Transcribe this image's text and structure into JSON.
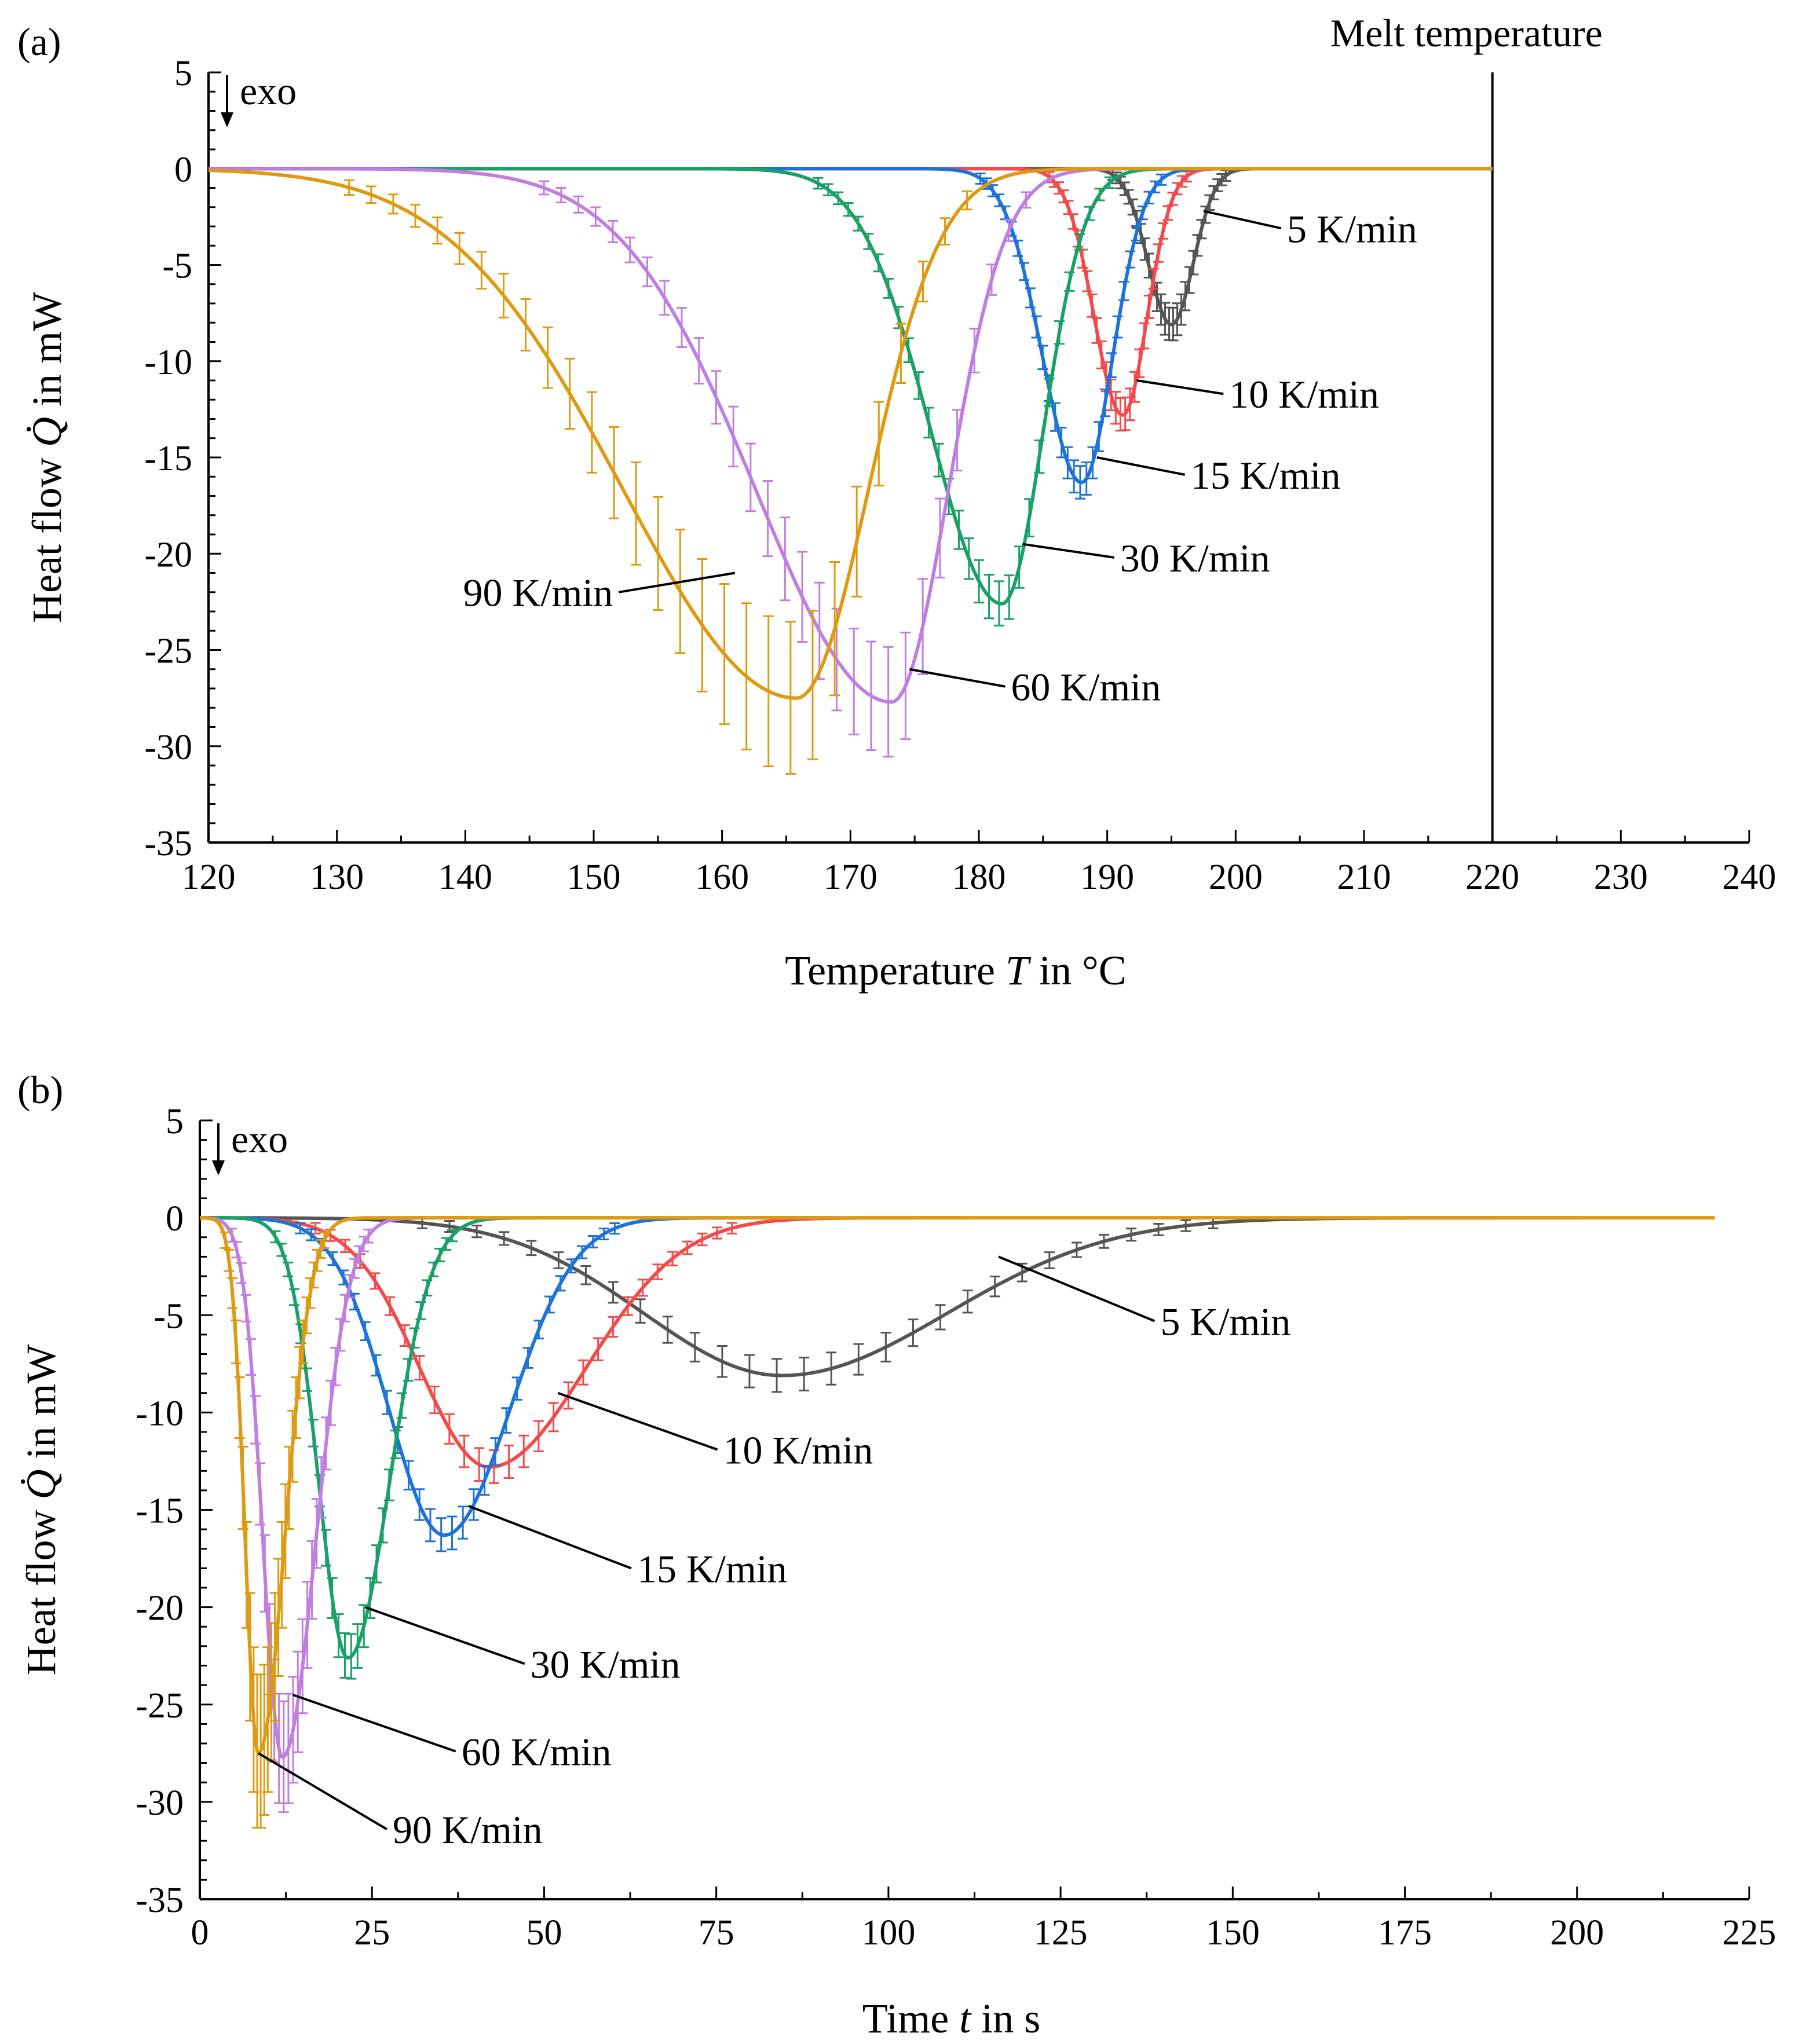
{
  "figure": {
    "background": "#ffffff"
  },
  "chart_data": [
    {
      "panel": "(a)",
      "type": "line",
      "xlabel": "Temperature T in °C",
      "xlabel_prefix": "Temperature ",
      "xlabel_var": "T",
      "xlabel_suffix": " in °C",
      "ylabel": "Heat flow Q̇ in mW",
      "ylabel_prefix": "Heat flow ",
      "ylabel_var": "Q̇",
      "ylabel_suffix": " in mW",
      "xlim": [
        120,
        240
      ],
      "ylim": [
        -35,
        5
      ],
      "xticks": [
        120,
        130,
        140,
        150,
        160,
        170,
        180,
        190,
        200,
        210,
        220,
        230,
        240
      ],
      "yticks": [
        5,
        0,
        -5,
        -10,
        -15,
        -20,
        -25,
        -30,
        -35
      ],
      "exo_label": "exo",
      "vline": {
        "x": 220,
        "label": "Melt temperature"
      },
      "series": [
        {
          "name": "5 K/min",
          "color": "#555555",
          "peak_x": 195.0,
          "peak_y": -8.1,
          "width_left": 1.8,
          "width_right": 1.7,
          "start": 120,
          "end": 220,
          "err": 0.6,
          "label_anchor_x": 197.5,
          "label_anchor_y": -2.2,
          "label_x": 204,
          "label_y": -3.7
        },
        {
          "name": "10 K/min",
          "color": "#f14b4b",
          "peak_x": 191.2,
          "peak_y": -12.8,
          "width_left": 2.2,
          "width_right": 1.9,
          "start": 120,
          "end": 220,
          "err": 0.6,
          "label_anchor_x": 192.3,
          "label_anchor_y": -11.0,
          "label_x": 199.5,
          "label_y": -12.3
        },
        {
          "name": "15 K/min",
          "color": "#1e73d6",
          "peak_x": 188.0,
          "peak_y": -16.3,
          "width_left": 3.0,
          "width_right": 2.4,
          "start": 120,
          "end": 220,
          "err": 0.6,
          "label_anchor_x": 189.2,
          "label_anchor_y": -15.0,
          "label_x": 196.5,
          "label_y": -16.5
        },
        {
          "name": "30 K/min",
          "color": "#1ba067",
          "peak_x": 181.8,
          "peak_y": -22.6,
          "width_left": 5.5,
          "width_right": 3.2,
          "start": 120,
          "end": 220,
          "err": 0.9,
          "label_anchor_x": 183.4,
          "label_anchor_y": -19.5,
          "label_x": 191,
          "label_y": -20.8
        },
        {
          "name": "60 K/min",
          "color": "#c07ee0",
          "peak_x": 173.2,
          "peak_y": -27.7,
          "width_left": 10.5,
          "width_right": 4.4,
          "start": 120,
          "end": 220,
          "err": 2.6,
          "label_anchor_x": 174.6,
          "label_anchor_y": -26.0,
          "label_x": 182.5,
          "label_y": -27.5
        },
        {
          "name": "90 K/min",
          "color": "#dd9a12",
          "peak_x": 165.8,
          "peak_y": -27.5,
          "width_left": 13.5,
          "width_right": 5.6,
          "start": 120,
          "end": 220,
          "err": 3.7,
          "label_anchor_x": 161.0,
          "label_anchor_y": -21.0,
          "label_x": 151.5,
          "label_y": -22.6
        }
      ]
    },
    {
      "panel": "(b)",
      "type": "line",
      "xlabel": "Time t in s",
      "xlabel_prefix": "Time ",
      "xlabel_var": "t",
      "xlabel_suffix": " in s",
      "ylabel": "Heat flow Q̇ in mW",
      "ylabel_prefix": "Heat flow ",
      "ylabel_var": "Q̇",
      "ylabel_suffix": " in mW",
      "xlim": [
        0,
        225
      ],
      "ylim": [
        -35,
        5
      ],
      "xticks": [
        0,
        25,
        50,
        75,
        100,
        125,
        150,
        175,
        200,
        225
      ],
      "yticks": [
        5,
        0,
        -5,
        -10,
        -15,
        -20,
        -25,
        -30,
        -35
      ],
      "exo_label": "exo",
      "series": [
        {
          "name": "5 K/min",
          "color": "#555555",
          "peak_x": 84.5,
          "peak_y": -8.1,
          "width_left": 20.0,
          "width_right": 24.0,
          "start": 0,
          "end": 200,
          "err": 0.6,
          "label_anchor_x": 116.0,
          "label_anchor_y": -2.0,
          "label_x": 139.5,
          "label_y": -5.9
        },
        {
          "name": "10 K/min",
          "color": "#f14b4b",
          "peak_x": 42.0,
          "peak_y": -12.8,
          "width_left": 10.0,
          "width_right": 14.0,
          "start": 0,
          "end": 112,
          "err": 0.6,
          "label_anchor_x": 52.0,
          "label_anchor_y": -9.0,
          "label_x": 76.0,
          "label_y": -12.5
        },
        {
          "name": "15 K/min",
          "color": "#1e73d6",
          "peak_x": 35.5,
          "peak_y": -16.3,
          "width_left": 8.0,
          "width_right": 9.5,
          "start": 0,
          "end": 92,
          "err": 0.6,
          "label_anchor_x": 39.0,
          "label_anchor_y": -14.8,
          "label_x": 63.5,
          "label_y": -18.6
        },
        {
          "name": "30 K/min",
          "color": "#1ba067",
          "peak_x": 21.5,
          "peak_y": -22.6,
          "width_left": 4.2,
          "width_right": 6.0,
          "start": 0,
          "end": 60,
          "err": 0.9,
          "label_anchor_x": 24.0,
          "label_anchor_y": -20.0,
          "label_x": 48.0,
          "label_y": -23.5
        },
        {
          "name": "60 K/min",
          "color": "#c07ee0",
          "peak_x": 12.0,
          "peak_y": -27.7,
          "width_left": 2.8,
          "width_right": 4.8,
          "start": 0,
          "end": 40,
          "err": 2.6,
          "label_anchor_x": 13.5,
          "label_anchor_y": -24.5,
          "label_x": 38.0,
          "label_y": -28.0
        },
        {
          "name": "90 K/min",
          "color": "#dd9a12",
          "peak_x": 8.5,
          "peak_y": -27.5,
          "width_left": 1.9,
          "width_right": 3.8,
          "start": 0,
          "end": 220,
          "err": 3.7,
          "label_anchor_x": 8.5,
          "label_anchor_y": -27.5,
          "label_x": 28.0,
          "label_y": -32.0
        }
      ]
    }
  ]
}
